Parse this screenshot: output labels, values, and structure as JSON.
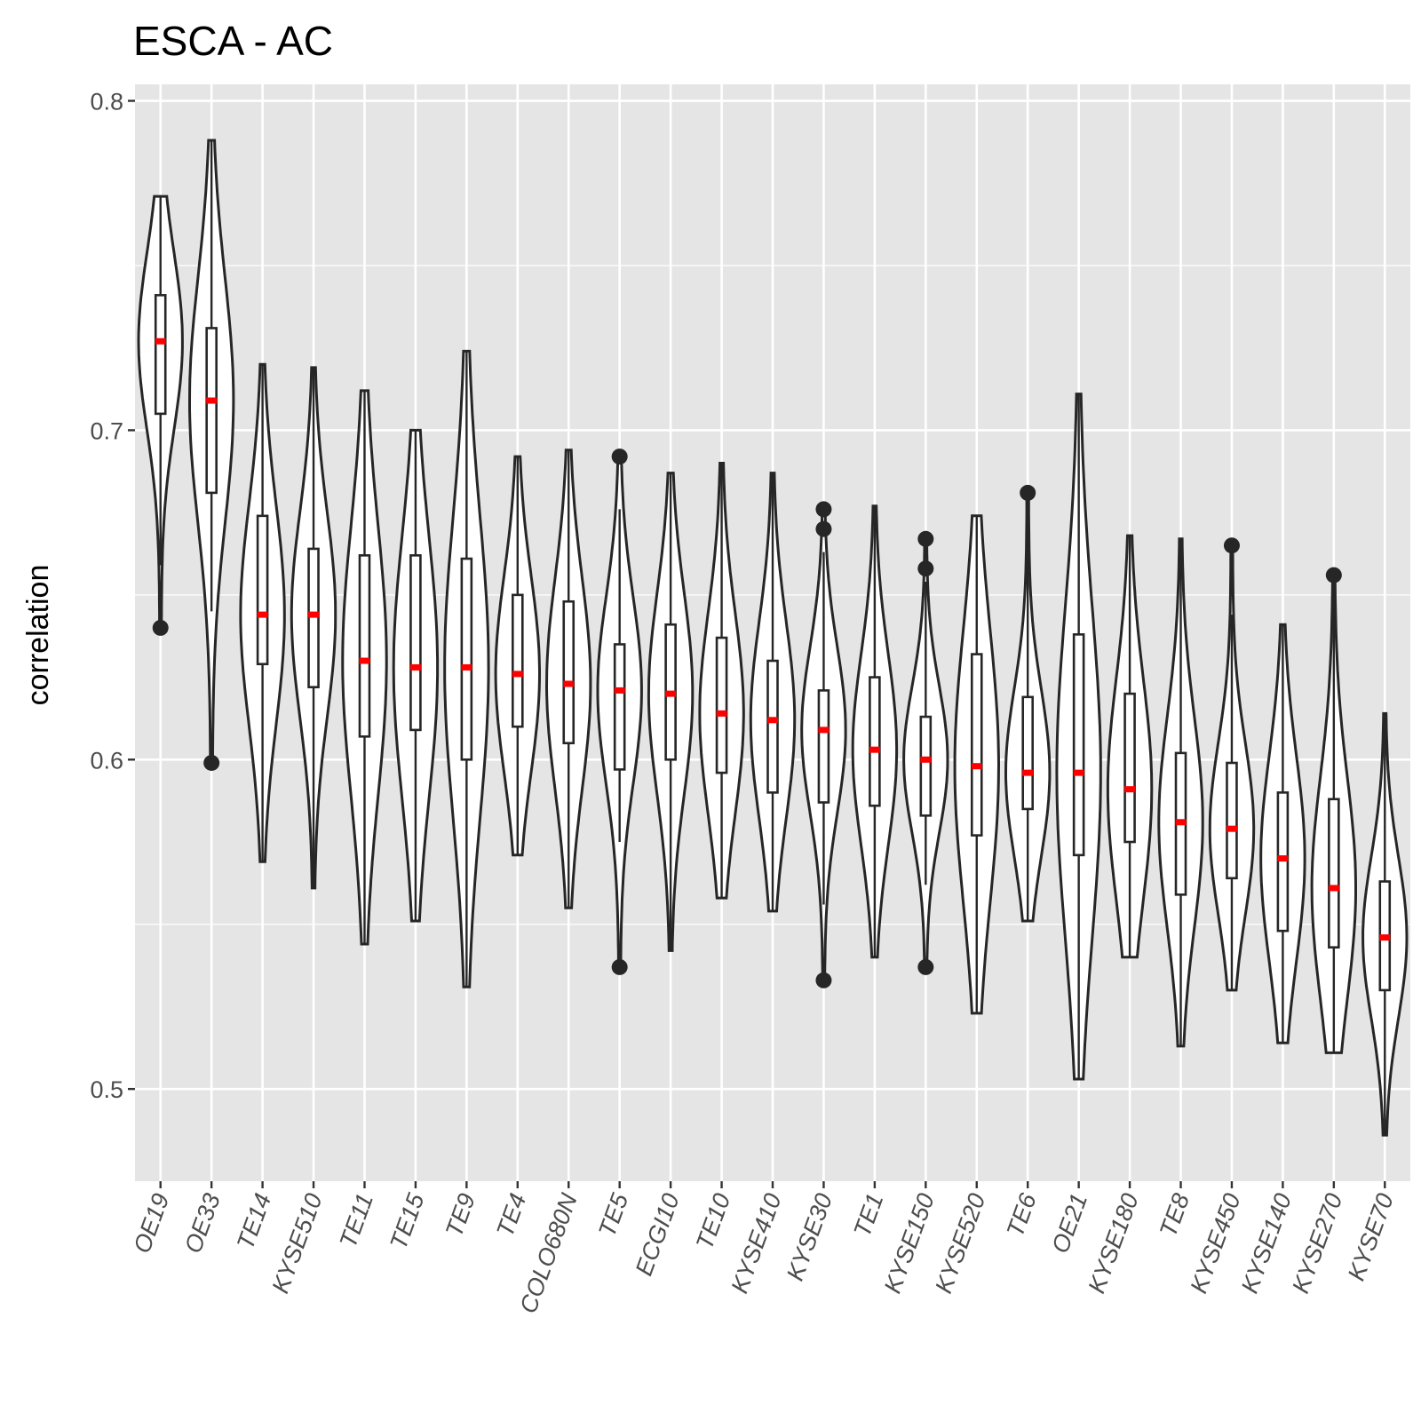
{
  "chart_data": {
    "type": "violin",
    "title": "ESCA - AC",
    "xlabel": "",
    "ylabel": "correlation",
    "ylim": [
      0.472,
      0.805
    ],
    "y_ticks": [
      0.5,
      0.6,
      0.7,
      0.8
    ],
    "y_tick_labels": [
      "0.5",
      "0.6",
      "0.7",
      "0.8"
    ],
    "grid": true,
    "legend": "none",
    "colors": {
      "panel_background": "#e5e5e5",
      "grid": "#ffffff",
      "violin_outline": "#262626",
      "violin_fill": "#ffffff",
      "median_marker": "#ff0000",
      "outlier": "#262626"
    },
    "categories": [
      "OE19",
      "OE33",
      "TE14",
      "KYSE510",
      "TE11",
      "TE15",
      "TE9",
      "TE4",
      "COLO680N",
      "TE5",
      "ECGI10",
      "TE10",
      "KYSE410",
      "KYSE30",
      "TE1",
      "KYSE150",
      "KYSE520",
      "TE6",
      "OE21",
      "KYSE180",
      "TE8",
      "KYSE450",
      "KYSE140",
      "KYSE270",
      "KYSE70"
    ],
    "series": [
      {
        "category": "OE19",
        "min": 0.64,
        "max": 0.771,
        "q1": 0.705,
        "median": 0.727,
        "q3": 0.741,
        "whisker_low": 0.659,
        "whisker_high": 0.771,
        "outliers": [
          0.64
        ]
      },
      {
        "category": "OE33",
        "min": 0.599,
        "max": 0.788,
        "q1": 0.681,
        "median": 0.709,
        "q3": 0.731,
        "whisker_low": 0.645,
        "whisker_high": 0.788,
        "outliers": [
          0.599
        ]
      },
      {
        "category": "TE14",
        "min": 0.569,
        "max": 0.72,
        "q1": 0.629,
        "median": 0.644,
        "q3": 0.674,
        "whisker_low": 0.569,
        "whisker_high": 0.72,
        "outliers": []
      },
      {
        "category": "KYSE510",
        "min": 0.561,
        "max": 0.719,
        "q1": 0.622,
        "median": 0.644,
        "q3": 0.664,
        "whisker_low": 0.561,
        "whisker_high": 0.719,
        "outliers": []
      },
      {
        "category": "TE11",
        "min": 0.544,
        "max": 0.712,
        "q1": 0.607,
        "median": 0.63,
        "q3": 0.662,
        "whisker_low": 0.544,
        "whisker_high": 0.712,
        "outliers": []
      },
      {
        "category": "TE15",
        "min": 0.551,
        "max": 0.7,
        "q1": 0.609,
        "median": 0.628,
        "q3": 0.662,
        "whisker_low": 0.551,
        "whisker_high": 0.7,
        "outliers": []
      },
      {
        "category": "TE9",
        "min": 0.531,
        "max": 0.724,
        "q1": 0.6,
        "median": 0.628,
        "q3": 0.661,
        "whisker_low": 0.531,
        "whisker_high": 0.724,
        "outliers": []
      },
      {
        "category": "TE4",
        "min": 0.571,
        "max": 0.692,
        "q1": 0.61,
        "median": 0.626,
        "q3": 0.65,
        "whisker_low": 0.571,
        "whisker_high": 0.692,
        "outliers": []
      },
      {
        "category": "COLO680N",
        "min": 0.555,
        "max": 0.694,
        "q1": 0.605,
        "median": 0.623,
        "q3": 0.648,
        "whisker_low": 0.555,
        "whisker_high": 0.694,
        "outliers": []
      },
      {
        "category": "TE5",
        "min": 0.537,
        "max": 0.692,
        "q1": 0.597,
        "median": 0.621,
        "q3": 0.635,
        "whisker_low": 0.575,
        "whisker_high": 0.676,
        "outliers": [
          0.692,
          0.537
        ]
      },
      {
        "category": "ECGI10",
        "min": 0.542,
        "max": 0.687,
        "q1": 0.6,
        "median": 0.62,
        "q3": 0.641,
        "whisker_low": 0.542,
        "whisker_high": 0.687,
        "outliers": []
      },
      {
        "category": "TE10",
        "min": 0.558,
        "max": 0.69,
        "q1": 0.596,
        "median": 0.614,
        "q3": 0.637,
        "whisker_low": 0.558,
        "whisker_high": 0.69,
        "outliers": []
      },
      {
        "category": "KYSE410",
        "min": 0.554,
        "max": 0.687,
        "q1": 0.59,
        "median": 0.612,
        "q3": 0.63,
        "whisker_low": 0.554,
        "whisker_high": 0.687,
        "outliers": []
      },
      {
        "category": "KYSE30",
        "min": 0.533,
        "max": 0.676,
        "q1": 0.587,
        "median": 0.609,
        "q3": 0.621,
        "whisker_low": 0.556,
        "whisker_high": 0.663,
        "outliers": [
          0.676,
          0.67,
          0.533
        ]
      },
      {
        "category": "TE1",
        "min": 0.54,
        "max": 0.677,
        "q1": 0.586,
        "median": 0.603,
        "q3": 0.625,
        "whisker_low": 0.54,
        "whisker_high": 0.677,
        "outliers": []
      },
      {
        "category": "KYSE150",
        "min": 0.537,
        "max": 0.667,
        "q1": 0.583,
        "median": 0.6,
        "q3": 0.613,
        "whisker_low": 0.562,
        "whisker_high": 0.654,
        "outliers": [
          0.667,
          0.658,
          0.537
        ]
      },
      {
        "category": "KYSE520",
        "min": 0.523,
        "max": 0.674,
        "q1": 0.577,
        "median": 0.598,
        "q3": 0.632,
        "whisker_low": 0.523,
        "whisker_high": 0.674,
        "outliers": []
      },
      {
        "category": "TE6",
        "min": 0.551,
        "max": 0.681,
        "q1": 0.585,
        "median": 0.596,
        "q3": 0.619,
        "whisker_low": 0.551,
        "whisker_high": 0.666,
        "outliers": [
          0.681
        ]
      },
      {
        "category": "OE21",
        "min": 0.503,
        "max": 0.711,
        "q1": 0.571,
        "median": 0.596,
        "q3": 0.638,
        "whisker_low": 0.503,
        "whisker_high": 0.711,
        "outliers": []
      },
      {
        "category": "KYSE180",
        "min": 0.54,
        "max": 0.668,
        "q1": 0.575,
        "median": 0.591,
        "q3": 0.62,
        "whisker_low": 0.54,
        "whisker_high": 0.668,
        "outliers": []
      },
      {
        "category": "TE8",
        "min": 0.513,
        "max": 0.667,
        "q1": 0.559,
        "median": 0.581,
        "q3": 0.602,
        "whisker_low": 0.513,
        "whisker_high": 0.667,
        "outliers": []
      },
      {
        "category": "KYSE450",
        "min": 0.53,
        "max": 0.665,
        "q1": 0.564,
        "median": 0.579,
        "q3": 0.599,
        "whisker_low": 0.53,
        "whisker_high": 0.644,
        "outliers": [
          0.665
        ]
      },
      {
        "category": "KYSE140",
        "min": 0.514,
        "max": 0.641,
        "q1": 0.548,
        "median": 0.57,
        "q3": 0.59,
        "whisker_low": 0.514,
        "whisker_high": 0.641,
        "outliers": []
      },
      {
        "category": "KYSE270",
        "min": 0.511,
        "max": 0.656,
        "q1": 0.543,
        "median": 0.561,
        "q3": 0.588,
        "whisker_low": 0.511,
        "whisker_high": 0.656,
        "outliers": [
          0.656
        ]
      },
      {
        "category": "KYSE70",
        "min": 0.486,
        "max": 0.614,
        "q1": 0.53,
        "median": 0.546,
        "q3": 0.563,
        "whisker_low": 0.486,
        "whisker_high": 0.614,
        "outliers": []
      }
    ]
  }
}
